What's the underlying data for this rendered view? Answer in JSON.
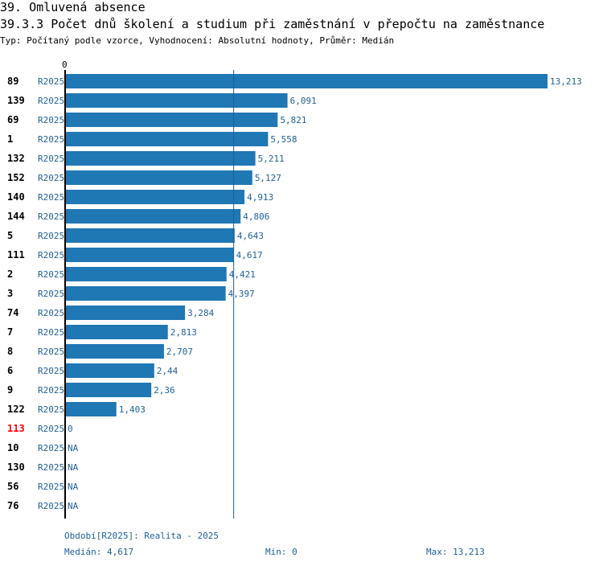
{
  "header": {
    "section_title": "39. Omluvená absence",
    "chart_title": "39.3.3 Počet dnů školení a studium při zaměstnání v přepočtu na zaměstnance",
    "subtitle": "Typ: Počítaný podle vzorce, Vyhodnocení: Absolutní hodnoty, Průměr: Medián"
  },
  "chart_data": {
    "type": "bar",
    "orientation": "horizontal",
    "axis_zero_label": "0",
    "xlim": [
      0,
      13.213
    ],
    "median_line": 4.617,
    "colors": {
      "bar": "#1f77b4",
      "value_text": "#1f5f99",
      "highlight_id": "#ff0000"
    },
    "rows": [
      {
        "id": "89",
        "period": "R2025",
        "value": 13.213,
        "label": "13,213",
        "highlight": false
      },
      {
        "id": "139",
        "period": "R2025",
        "value": 6.091,
        "label": "6,091",
        "highlight": false
      },
      {
        "id": "69",
        "period": "R2025",
        "value": 5.821,
        "label": "5,821",
        "highlight": false
      },
      {
        "id": "1",
        "period": "R2025",
        "value": 5.558,
        "label": "5,558",
        "highlight": false
      },
      {
        "id": "132",
        "period": "R2025",
        "value": 5.211,
        "label": "5,211",
        "highlight": false
      },
      {
        "id": "152",
        "period": "R2025",
        "value": 5.127,
        "label": "5,127",
        "highlight": false
      },
      {
        "id": "140",
        "period": "R2025",
        "value": 4.913,
        "label": "4,913",
        "highlight": false
      },
      {
        "id": "144",
        "period": "R2025",
        "value": 4.806,
        "label": "4,806",
        "highlight": false
      },
      {
        "id": "5",
        "period": "R2025",
        "value": 4.643,
        "label": "4,643",
        "highlight": false
      },
      {
        "id": "111",
        "period": "R2025",
        "value": 4.617,
        "label": "4,617",
        "highlight": false
      },
      {
        "id": "2",
        "period": "R2025",
        "value": 4.421,
        "label": "4,421",
        "highlight": false
      },
      {
        "id": "3",
        "period": "R2025",
        "value": 4.397,
        "label": "4,397",
        "highlight": false
      },
      {
        "id": "74",
        "period": "R2025",
        "value": 3.284,
        "label": "3,284",
        "highlight": false
      },
      {
        "id": "7",
        "period": "R2025",
        "value": 2.813,
        "label": "2,813",
        "highlight": false
      },
      {
        "id": "8",
        "period": "R2025",
        "value": 2.707,
        "label": "2,707",
        "highlight": false
      },
      {
        "id": "6",
        "period": "R2025",
        "value": 2.44,
        "label": "2,44",
        "highlight": false
      },
      {
        "id": "9",
        "period": "R2025",
        "value": 2.36,
        "label": "2,36",
        "highlight": false
      },
      {
        "id": "122",
        "period": "R2025",
        "value": 1.403,
        "label": "1,403",
        "highlight": false
      },
      {
        "id": "113",
        "period": "R2025",
        "value": 0,
        "label": "0",
        "highlight": true
      },
      {
        "id": "10",
        "period": "R2025",
        "value": null,
        "label": "NA",
        "highlight": false
      },
      {
        "id": "130",
        "period": "R2025",
        "value": null,
        "label": "NA",
        "highlight": false
      },
      {
        "id": "56",
        "period": "R2025",
        "value": null,
        "label": "NA",
        "highlight": false
      },
      {
        "id": "76",
        "period": "R2025",
        "value": null,
        "label": "NA",
        "highlight": false
      }
    ]
  },
  "footer": {
    "period_text": "Období[R2025]: Realita - 2025",
    "median_text": "Medián: 4,617",
    "min_text": "Min: 0",
    "max_text": "Max: 13,213"
  }
}
